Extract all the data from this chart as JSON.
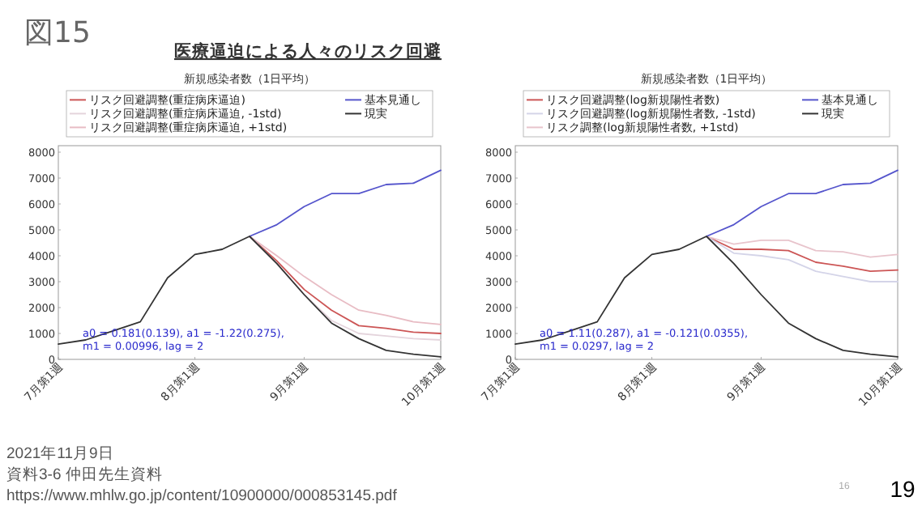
{
  "chart_data": [
    {
      "type": "other",
      "title": "図15",
      "subtitle": "医療逼迫による人々のリスク回避",
      "annotations": [
        "2021年11月9日",
        "資料3-6 仲田先生資料",
        "https://www.mhlw.go.jp/content/10900000/000853145.pdf",
        "16",
        "19"
      ]
    },
    {
      "type": "line",
      "title": "新規感染者数（1日平均）",
      "categories": [
        "7月第1週",
        null,
        null,
        null,
        null,
        "8月第1週",
        null,
        null,
        null,
        "9月第1週",
        null,
        null,
        null,
        null,
        "10月第1週"
      ],
      "ylim": [
        0,
        8250
      ],
      "yticks": [
        0,
        1000,
        2000,
        3000,
        4000,
        5000,
        6000,
        7000,
        8000
      ],
      "legend": "top",
      "annotations": [
        "a0 = 0.181(0.139), a1 = -1.22(0.275),",
        "m1 = 0.00996, lag = 2"
      ],
      "series": [
        {
          "name": "リスク回避調整(重症病床逼迫)",
          "color": "#cc5555",
          "values": [
            null,
            null,
            null,
            null,
            null,
            null,
            null,
            4750,
            3800,
            2700,
            1900,
            1300,
            1200,
            1050,
            1000
          ]
        },
        {
          "name": "リスク回避調整(重症病床逼迫, -1std)",
          "color": "#e4d4dc",
          "values": [
            null,
            null,
            null,
            null,
            null,
            null,
            null,
            4750,
            3700,
            2500,
            1500,
            1000,
            900,
            800,
            750
          ]
        },
        {
          "name": "リスク回避調整(重症病床逼迫, +1std)",
          "color": "#e8bcc4",
          "values": [
            null,
            null,
            null,
            null,
            null,
            null,
            null,
            4750,
            4000,
            3200,
            2500,
            1900,
            1700,
            1450,
            1350
          ]
        },
        {
          "name": "基本見通し",
          "color": "#5555cc",
          "values": [
            null,
            null,
            null,
            null,
            null,
            null,
            null,
            4750,
            5200,
            5900,
            6400,
            6400,
            6750,
            6800,
            7300
          ]
        },
        {
          "name": "現実",
          "color": "#333333",
          "values": [
            590,
            750,
            1100,
            1450,
            3150,
            4050,
            4250,
            4750,
            3700,
            2500,
            1400,
            800,
            350,
            200,
            100
          ]
        }
      ]
    },
    {
      "type": "line",
      "title": "新規感染者数（1日平均）",
      "categories": [
        "7月第1週",
        null,
        null,
        null,
        null,
        "8月第1週",
        null,
        null,
        null,
        "9月第1週",
        null,
        null,
        null,
        null,
        "10月第1週"
      ],
      "ylim": [
        0,
        8250
      ],
      "yticks": [
        0,
        1000,
        2000,
        3000,
        4000,
        5000,
        6000,
        7000,
        8000
      ],
      "legend": "top",
      "annotations": [
        "a0 = 1.11(0.287), a1 = -0.121(0.0355),",
        "m1 = 0.0297, lag = 2"
      ],
      "series": [
        {
          "name": "リスク回避調整(log新規陽性者数)",
          "color": "#cc5555",
          "values": [
            null,
            null,
            null,
            null,
            null,
            null,
            null,
            4750,
            4250,
            4250,
            4200,
            3750,
            3600,
            3400,
            3450
          ]
        },
        {
          "name": "リスク回避調整(log新規陽性者数, -1std)",
          "color": "#d4d4e8",
          "values": [
            null,
            null,
            null,
            null,
            null,
            null,
            null,
            4750,
            4100,
            4000,
            3850,
            3400,
            3200,
            3000,
            3000
          ]
        },
        {
          "name": "リスク調整(log新規陽性者数, +1std)",
          "color": "#e8c4cc",
          "values": [
            null,
            null,
            null,
            null,
            null,
            null,
            null,
            4750,
            4450,
            4600,
            4600,
            4200,
            4150,
            3950,
            4050
          ]
        },
        {
          "name": "基本見通し",
          "color": "#5555cc",
          "values": [
            null,
            null,
            null,
            null,
            null,
            null,
            null,
            4750,
            5200,
            5900,
            6400,
            6400,
            6750,
            6800,
            7300
          ]
        },
        {
          "name": "現実",
          "color": "#333333",
          "values": [
            590,
            750,
            1100,
            1450,
            3150,
            4050,
            4250,
            4750,
            3700,
            2500,
            1400,
            800,
            350,
            200,
            100
          ]
        }
      ]
    }
  ]
}
